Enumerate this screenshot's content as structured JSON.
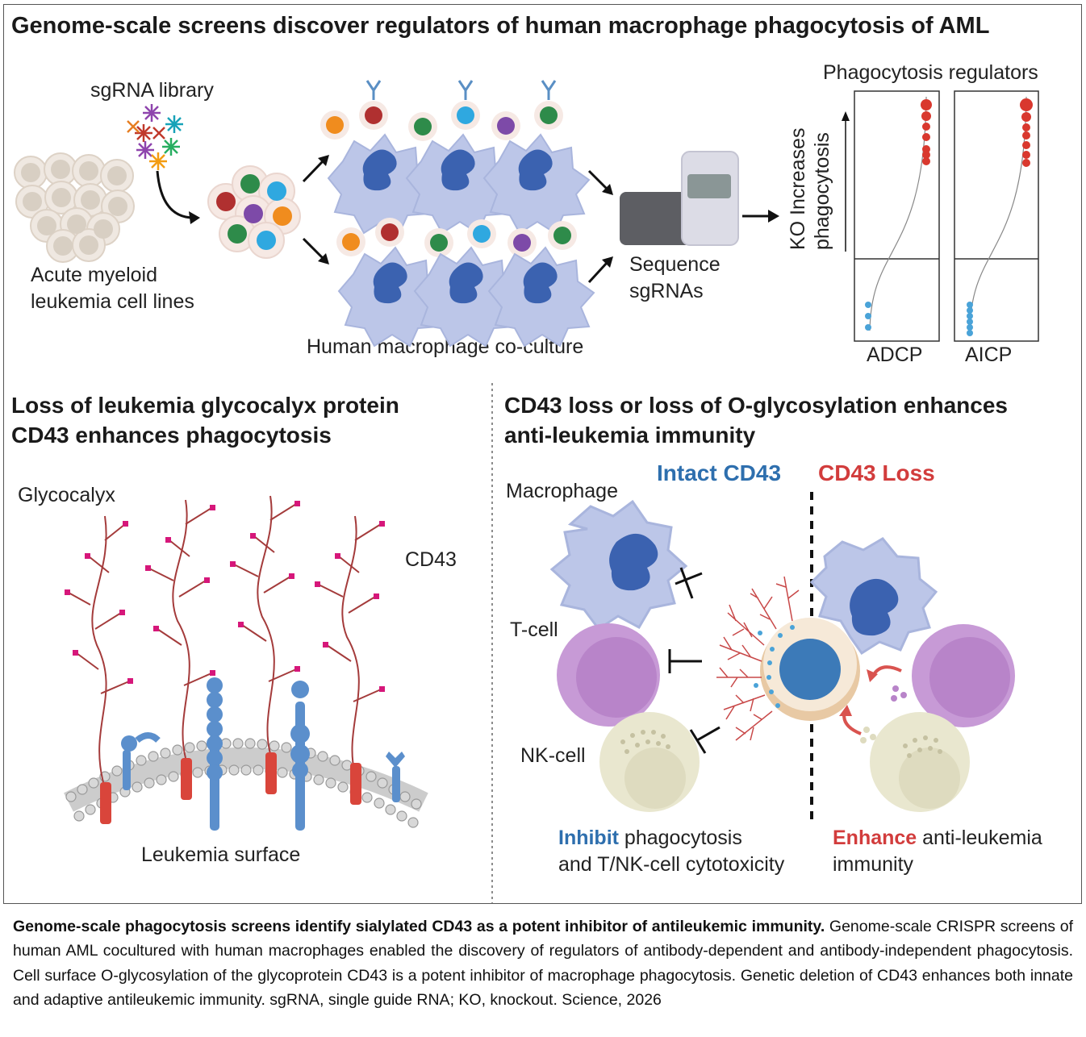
{
  "top_panel": {
    "title": "Genome-scale screens discover regulators of human macrophage phagocytosis of AML",
    "sgrna_label": "sgRNA library",
    "aml_label_line1": "Acute myeloid",
    "aml_label_line2": "leukemia cell lines",
    "coculture_label": "Human macrophage co-culture",
    "sequence_line1": "Sequence",
    "sequence_line2": "sgRNAs",
    "regulators_title": "Phagocytosis regulators",
    "y_axis_line1": "KO Increases",
    "y_axis_line2": "phagocytosis",
    "plots": [
      {
        "label": "ADCP"
      },
      {
        "label": "AICP"
      }
    ]
  },
  "left_panel": {
    "title_line1": "Loss of leukemia glycocalyx protein",
    "title_line2": "CD43 enhances phagocytosis",
    "glycocalyx_label": "Glycocalyx",
    "cd43_label": "CD43",
    "surface_label": "Leukemia surface"
  },
  "right_panel": {
    "title_line1": "CD43 loss or loss of O-glycosylation enhances",
    "title_line2": "anti-leukemia immunity",
    "intact_label": "Intact CD43",
    "loss_label": "CD43 Loss",
    "macrophage_label": "Macrophage",
    "tcell_label": "T-cell",
    "nkcell_label": "NK-cell",
    "inhibit_bold": "Inhibit",
    "inhibit_rest": " phagocytosis",
    "inhibit_line2": "and T/NK-cell cytotoxicity",
    "enhance_bold": "Enhance",
    "enhance_rest": " anti-leukemia",
    "enhance_line2": "immunity"
  },
  "caption": {
    "bold": "Genome-scale phagocytosis screens identify sialylated CD43 as a potent inhibitor of antileukemic immunity.",
    "text": " Genome-scale CRISPR screens of human AML cocultured with human macrophages enabled the discovery of regulators of antibody-dependent and antibody-independent phagocytosis. Cell surface O-glycosylation of the glycoprotein CD43 is a potent inhibitor of macrophage phagocytosis. Genetic deletion of CD43 enhances both innate and adaptive antileukemic immunity. sgRNA, single guide RNA; KO, knockout. Science, 2026"
  },
  "colors": {
    "red_dot": "#d9382e",
    "blue_dot": "#4aa3d8",
    "macrophage": "#b9c4e6",
    "nucleus": "#4166b3",
    "intact_blue": "#2e6fae",
    "loss_red": "#d23c3c",
    "glycan_magenta": "#d6177a",
    "stem_red": "#a43b3b"
  }
}
